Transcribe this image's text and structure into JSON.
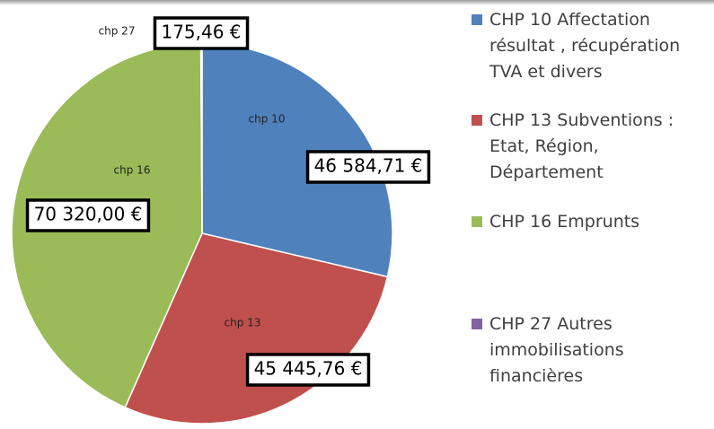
{
  "chart_data": {
    "type": "pie",
    "categories": [
      "chp 10",
      "chp 13",
      "chp 16",
      "chp 27"
    ],
    "values": [
      46584.71,
      45445.76,
      70320.0,
      175.46
    ],
    "value_labels": [
      "46 584,71 €",
      "45 445,76 €",
      "70 320,00 €",
      "175,46 €"
    ],
    "colors": [
      "#4f81bd",
      "#c0504d",
      "#9bbb59",
      "#8064a2"
    ],
    "legend": [
      "CHP 10  Affectation résultat , récupération TVA et divers",
      "CHP 13 Subventions : Etat, Région, Département",
      "CHP 16 Emprunts",
      "CHP 27  Autres immobilisations financières"
    ]
  }
}
